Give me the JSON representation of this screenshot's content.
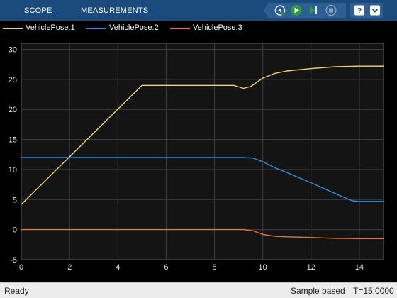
{
  "toolstrip": {
    "tabs": [
      {
        "label": "SCOPE"
      },
      {
        "label": "MEASUREMENTS"
      }
    ],
    "buttons": {
      "step_back": "step-back-icon",
      "run": "run-icon",
      "step_forward": "step-forward-icon",
      "stop": "stop-icon",
      "help": "help-icon",
      "expand": "chevron-down-icon"
    }
  },
  "legend": {
    "items": [
      {
        "label": "VehiclePose:1",
        "color": "#f2d36b"
      },
      {
        "label": "VehiclePose:2",
        "color": "#2d8ed6"
      },
      {
        "label": "VehiclePose:3",
        "color": "#e4752f"
      }
    ]
  },
  "chart_data": {
    "type": "line",
    "xlim": [
      0,
      15
    ],
    "ylim": [
      -5,
      31
    ],
    "x_ticks": [
      0,
      2,
      4,
      6,
      8,
      10,
      12,
      14
    ],
    "y_ticks": [
      -5,
      0,
      5,
      10,
      15,
      20,
      25,
      30
    ],
    "grid": true,
    "legend_position": "top",
    "background": "#141414",
    "series": [
      {
        "name": "VehiclePose:1",
        "color": "#f2d36b",
        "points": [
          [
            0,
            4.2
          ],
          [
            5,
            24
          ],
          [
            8.8,
            24
          ],
          [
            9.2,
            23.5
          ],
          [
            9.5,
            23.8
          ],
          [
            10,
            25.2
          ],
          [
            10.5,
            26
          ],
          [
            11,
            26.4
          ],
          [
            12,
            26.8
          ],
          [
            13,
            27.1
          ],
          [
            14,
            27.2
          ],
          [
            15,
            27.2
          ]
        ]
      },
      {
        "name": "VehiclePose:2",
        "color": "#2d8ed6",
        "points": [
          [
            0,
            12
          ],
          [
            9.2,
            12
          ],
          [
            9.6,
            11.9
          ],
          [
            10,
            11.3
          ],
          [
            10.5,
            10.3
          ],
          [
            11,
            9.5
          ],
          [
            12,
            7.8
          ],
          [
            13,
            6
          ],
          [
            13.7,
            4.8
          ],
          [
            14,
            4.7
          ],
          [
            15,
            4.7
          ]
        ]
      },
      {
        "name": "VehiclePose:3",
        "color": "#e4752f",
        "points": [
          [
            0,
            0
          ],
          [
            9.2,
            0
          ],
          [
            9.6,
            -0.2
          ],
          [
            10,
            -0.8
          ],
          [
            10.5,
            -1.1
          ],
          [
            11,
            -1.2
          ],
          [
            12,
            -1.3
          ],
          [
            13,
            -1.45
          ],
          [
            14,
            -1.5
          ],
          [
            15,
            -1.5
          ]
        ]
      }
    ]
  },
  "status": {
    "left": "Ready",
    "mode": "Sample based",
    "time": "T=15.0000"
  }
}
